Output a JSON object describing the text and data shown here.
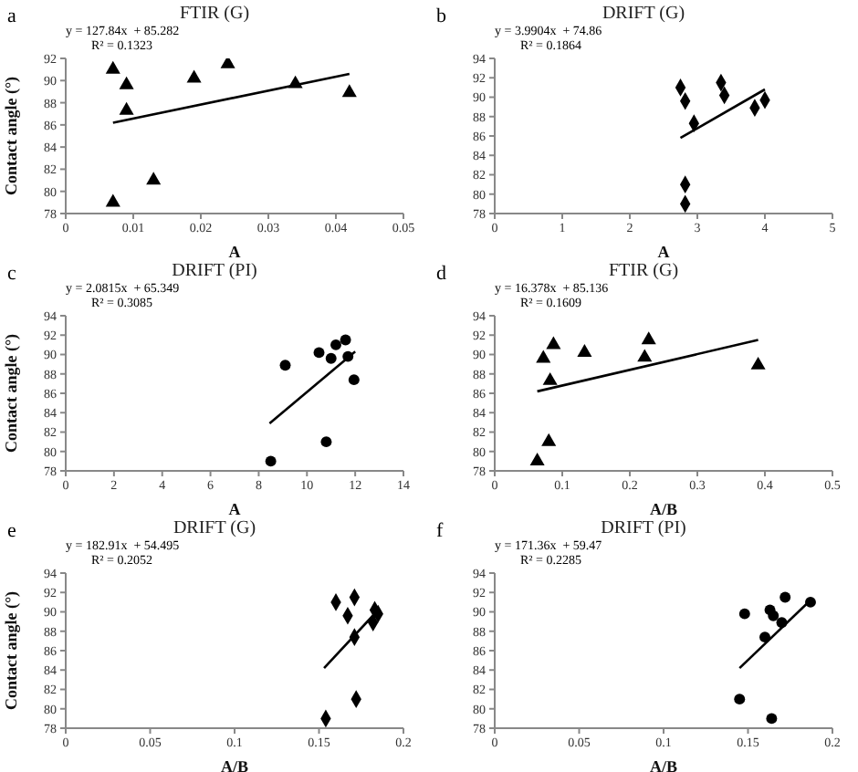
{
  "chart_data": [
    {
      "type": "scatter",
      "title": "FTIR (G)",
      "xlabel": "A",
      "ylabel": "Contact angle (°)",
      "grid": false,
      "xlim": [
        0,
        0.05
      ],
      "xticks": [
        0,
        0.01,
        0.02,
        0.03,
        0.04,
        0.05
      ],
      "ylim": [
        78,
        92
      ],
      "yticks": [
        78,
        80,
        82,
        84,
        86,
        88,
        90,
        92
      ],
      "annotations": [
        "a",
        "y = 127.84x  + 85.282",
        "R² = 0.1323"
      ],
      "series": [
        {
          "type": "scatter",
          "marker": "triangle",
          "color": "#000000",
          "x": [
            0.007,
            0.009,
            0.009,
            0.019,
            0.024,
            0.034,
            0.042,
            0.013,
            0.007
          ],
          "values": [
            91,
            89.6,
            87.3,
            90.2,
            91.5,
            89.7,
            88.9,
            81,
            79
          ]
        },
        {
          "type": "line",
          "marker": "none",
          "color": "#000000",
          "x": [
            0.007,
            0.042
          ],
          "values": [
            86.2,
            90.6
          ]
        }
      ]
    },
    {
      "type": "scatter",
      "title": "DRIFT (G)",
      "xlabel": "A",
      "grid": false,
      "xlim": [
        0,
        5
      ],
      "xticks": [
        0,
        1,
        2,
        3,
        4,
        5
      ],
      "ylim": [
        78,
        94
      ],
      "yticks": [
        78,
        80,
        82,
        84,
        86,
        88,
        90,
        92,
        94
      ],
      "annotations": [
        "b",
        "y = 3.9904x  + 74.86",
        "R² = 0.1864"
      ],
      "series": [
        {
          "type": "scatter",
          "marker": "diamond",
          "color": "#000000",
          "x": [
            2.75,
            2.82,
            2.95,
            3.35,
            3.4,
            3.85,
            4.0,
            2.82,
            2.82
          ],
          "values": [
            91,
            89.6,
            87.3,
            91.5,
            90.2,
            88.9,
            89.7,
            81,
            79
          ]
        },
        {
          "type": "line",
          "marker": "none",
          "color": "#000000",
          "x": [
            2.75,
            4.0
          ],
          "values": [
            85.8,
            90.8
          ]
        }
      ]
    },
    {
      "type": "scatter",
      "title": "DRIFT (PI)",
      "xlabel": "A",
      "ylabel": "Contact angle (°)",
      "grid": false,
      "xlim": [
        0,
        14
      ],
      "xticks": [
        0,
        2,
        4,
        6,
        8,
        10,
        12,
        14
      ],
      "ylim": [
        78,
        94
      ],
      "yticks": [
        78,
        80,
        82,
        84,
        86,
        88,
        90,
        92,
        94
      ],
      "annotations": [
        "c",
        "y = 2.0815x  + 65.349",
        "R² = 0.3085"
      ],
      "series": [
        {
          "type": "scatter",
          "marker": "circle",
          "color": "#000000",
          "x": [
            8.5,
            9.1,
            10.5,
            10.8,
            11,
            11.2,
            11.6,
            11.7,
            11.95
          ],
          "values": [
            79,
            88.9,
            90.2,
            81,
            89.6,
            91,
            91.5,
            89.8,
            87.4
          ]
        },
        {
          "type": "line",
          "marker": "none",
          "color": "#000000",
          "x": [
            8.45,
            12
          ],
          "values": [
            82.9,
            90.3
          ]
        }
      ]
    },
    {
      "type": "scatter",
      "title": "FTIR (G)",
      "xlabel": "A/B",
      "grid": false,
      "xlim": [
        0,
        0.5
      ],
      "xticks": [
        0,
        0.1,
        0.2,
        0.3,
        0.4,
        0.5
      ],
      "ylim": [
        78,
        94
      ],
      "yticks": [
        78,
        80,
        82,
        84,
        86,
        88,
        90,
        92,
        94
      ],
      "annotations": [
        "d",
        "y = 16.378x  + 85.136",
        "R² = 0.1609"
      ],
      "series": [
        {
          "type": "scatter",
          "marker": "triangle",
          "color": "#000000",
          "x": [
            0.063,
            0.072,
            0.08,
            0.082,
            0.087,
            0.133,
            0.222,
            0.228,
            0.39
          ],
          "values": [
            79,
            89.6,
            81,
            87.3,
            91,
            90.2,
            89.7,
            91.5,
            88.9
          ]
        },
        {
          "type": "line",
          "marker": "none",
          "color": "#000000",
          "x": [
            0.063,
            0.39
          ],
          "values": [
            86.2,
            91.5
          ]
        }
      ]
    },
    {
      "type": "scatter",
      "title": "DRIFT (G)",
      "xlabel": "A/B",
      "ylabel": "Contact angle (°)",
      "grid": false,
      "xlim": [
        0,
        0.2
      ],
      "xticks": [
        0,
        0.05,
        0.1,
        0.15,
        0.2
      ],
      "ylim": [
        78,
        94
      ],
      "yticks": [
        78,
        80,
        82,
        84,
        86,
        88,
        90,
        92,
        94
      ],
      "annotations": [
        "e",
        "y = 182.91x  + 54.495",
        "R² = 0.2052"
      ],
      "series": [
        {
          "type": "scatter",
          "marker": "diamond",
          "color": "#000000",
          "x": [
            0.154,
            0.16,
            0.167,
            0.171,
            0.171,
            0.172,
            0.182,
            0.183,
            0.185
          ],
          "values": [
            79,
            91,
            89.6,
            91.5,
            87.4,
            81,
            88.9,
            90.2,
            89.8
          ]
        },
        {
          "type": "line",
          "marker": "none",
          "color": "#000000",
          "x": [
            0.153,
            0.184
          ],
          "values": [
            84.2,
            90
          ]
        }
      ]
    },
    {
      "type": "scatter",
      "title": "DRIFT (PI)",
      "xlabel": "A/B",
      "grid": false,
      "xlim": [
        0,
        0.2
      ],
      "xticks": [
        0,
        0.05,
        0.1,
        0.15,
        0.2
      ],
      "ylim": [
        78,
        94
      ],
      "yticks": [
        78,
        80,
        82,
        84,
        86,
        88,
        90,
        92,
        94
      ],
      "annotations": [
        "f",
        "y = 171.36x  + 59.47",
        "R² = 0.2285"
      ],
      "series": [
        {
          "type": "scatter",
          "marker": "circle",
          "color": "#000000",
          "x": [
            0.145,
            0.148,
            0.16,
            0.163,
            0.164,
            0.165,
            0.17,
            0.172,
            0.187
          ],
          "values": [
            81,
            89.8,
            87.4,
            90.2,
            79,
            89.6,
            88.9,
            91.5,
            91
          ]
        },
        {
          "type": "line",
          "marker": "none",
          "color": "#000000",
          "x": [
            0.145,
            0.187
          ],
          "values": [
            84.2,
            91.2
          ]
        }
      ]
    }
  ]
}
